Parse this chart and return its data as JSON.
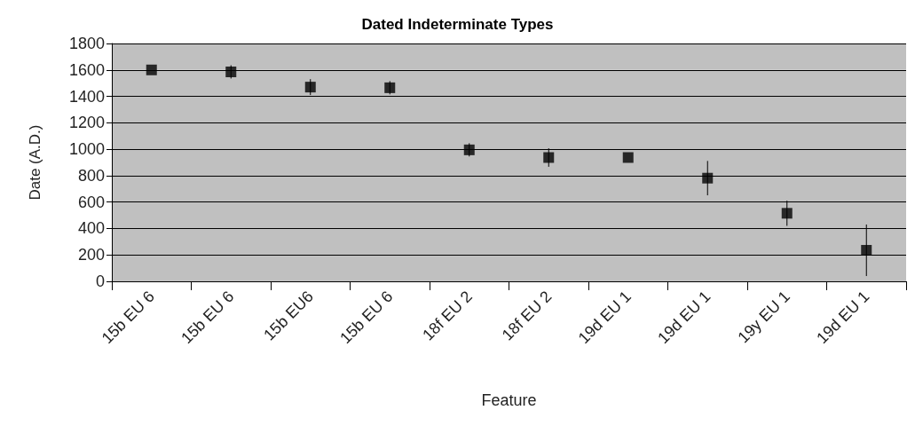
{
  "chart_data": {
    "type": "scatter",
    "title": "Dated Indeterminate Types",
    "xlabel": "Feature",
    "ylabel": "Date (A.D.)",
    "categories": [
      "15b EU 6",
      "15b EU 6",
      "15b EU6",
      "15b EU 6",
      "18f EU 2",
      "18f EU 2",
      "19d EU 1",
      "19d EU 1",
      "19y EU 1",
      "19d EU 1"
    ],
    "values": [
      1600,
      1585,
      1470,
      1465,
      995,
      937,
      937,
      781,
      515,
      235
    ],
    "errors": [
      null,
      50,
      60,
      50,
      50,
      70,
      null,
      130,
      95,
      195
    ],
    "color": "#000000",
    "marker": "square",
    "ylim": [
      0,
      1800
    ],
    "yticks": [
      0,
      200,
      400,
      600,
      800,
      1000,
      1200,
      1400,
      1600,
      1800
    ],
    "grid": "y"
  }
}
